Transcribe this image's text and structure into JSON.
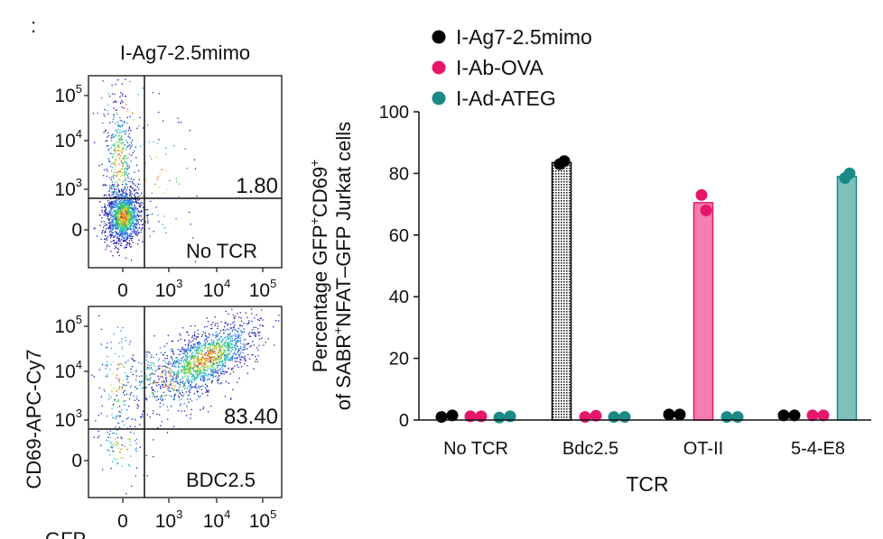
{
  "panel_letter": ":",
  "flow": {
    "title": "I-Ag7-2.5mimo",
    "y_axis_label": "CD69-APC-Cy7",
    "x_axis_label": "GFP",
    "y_ticks": [
      {
        "base": "10",
        "exp": "5"
      },
      {
        "base": "10",
        "exp": "4"
      },
      {
        "base": "10",
        "exp": "3"
      },
      {
        "base": "0",
        "exp": ""
      }
    ],
    "x_ticks": [
      {
        "base": "0",
        "exp": ""
      },
      {
        "base": "10",
        "exp": "3"
      },
      {
        "base": "10",
        "exp": "4"
      },
      {
        "base": "10",
        "exp": "5"
      }
    ],
    "plots": [
      {
        "quadrant_value": "1.80",
        "sample_label": "No TCR"
      },
      {
        "quadrant_value": "83.40",
        "sample_label": "BDC2.5"
      }
    ]
  },
  "colors": {
    "I-Ag7-2.5mimo": "#000000",
    "I-Ab-OVA": "#e6176b",
    "I-Ad-ATEG": "#1a8a87",
    "bar_pink": "#f57eb0",
    "bar_teal": "#7fbfbc"
  },
  "chart_data": {
    "type": "bar",
    "xlabel": "TCR",
    "ylabel_line1_parts": [
      "Percentage GFP",
      "+",
      "CD69",
      "+"
    ],
    "ylabel_line2_parts": [
      "of SABR",
      "+",
      "NFAT–GFP Jurkat cells"
    ],
    "ylim": [
      0,
      100
    ],
    "yticks": [
      0,
      20,
      40,
      60,
      80,
      100
    ],
    "categories": [
      "No TCR",
      "Bdc2.5",
      "OT-II",
      "5-4-E8"
    ],
    "legend_position": "top",
    "series": [
      {
        "name": "I-Ag7-2.5mimo",
        "values": [
          1.2,
          83.5,
          1.8,
          1.5
        ],
        "points": [
          [
            1.0,
            1.5
          ],
          [
            83.0,
            84.0
          ],
          [
            1.8,
            1.8
          ],
          [
            1.5,
            1.5
          ]
        ]
      },
      {
        "name": "I-Ab-OVA",
        "values": [
          1.2,
          1.2,
          70.5,
          1.5
        ],
        "points": [
          [
            1.2,
            1.2
          ],
          [
            1.0,
            1.4
          ],
          [
            73.0,
            68.0
          ],
          [
            1.5,
            1.5
          ]
        ]
      },
      {
        "name": "I-Ad-ATEG",
        "values": [
          1.0,
          1.0,
          1.0,
          79.0
        ],
        "points": [
          [
            0.8,
            1.2
          ],
          [
            1.0,
            1.0
          ],
          [
            1.0,
            1.0
          ],
          [
            78.5,
            80.0
          ]
        ]
      }
    ]
  }
}
